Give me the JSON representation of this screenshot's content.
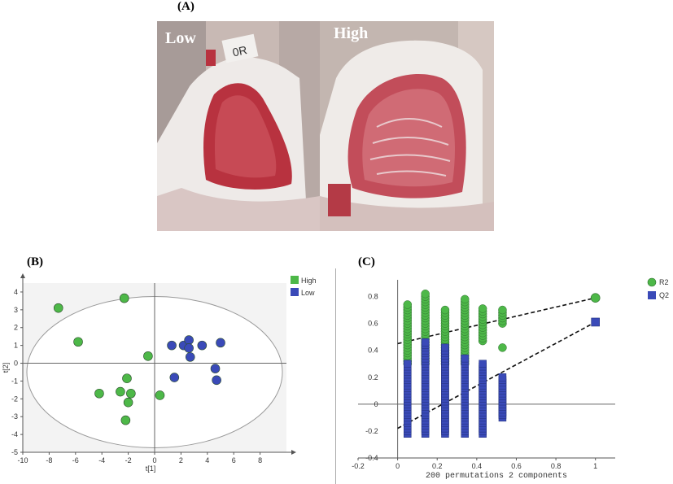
{
  "figure": {
    "panel_a_label": "(A)",
    "panel_b_label": "(B)",
    "panel_c_label": "(C)",
    "photo_low_caption": "Low",
    "photo_high_caption": "High",
    "tag_text": "0R"
  },
  "chart_data": [
    {
      "type": "scatter",
      "panel": "B",
      "xlabel": "t[1]",
      "ylabel": "t[2]",
      "xlim": [
        -10,
        10
      ],
      "ylim": [
        -5,
        4.5
      ],
      "xticks": [
        -10,
        -8,
        -6,
        -4,
        -2,
        0,
        2,
        4,
        6,
        8
      ],
      "yticks": [
        -5,
        -4,
        -3,
        -2,
        -1,
        0,
        1,
        2,
        3,
        4
      ],
      "legend_position": "top-right",
      "grid": false,
      "colors": {
        "High": "#4db848",
        "Low": "#3a4ab8"
      },
      "series": [
        {
          "name": "High",
          "points": [
            [
              -7.3,
              3.1
            ],
            [
              -2.3,
              3.65
            ],
            [
              -5.8,
              1.2
            ],
            [
              -0.5,
              0.4
            ],
            [
              -2.1,
              -0.85
            ],
            [
              -4.2,
              -1.7
            ],
            [
              -2.6,
              -1.6
            ],
            [
              -1.8,
              -1.7
            ],
            [
              -2.0,
              -2.2
            ],
            [
              0.4,
              -1.8
            ],
            [
              -2.2,
              -3.2
            ]
          ]
        },
        {
          "name": "Low",
          "points": [
            [
              1.3,
              1.0
            ],
            [
              2.2,
              1.0
            ],
            [
              2.6,
              1.3
            ],
            [
              2.6,
              0.85
            ],
            [
              3.6,
              1.0
            ],
            [
              5.0,
              1.15
            ],
            [
              2.7,
              0.35
            ],
            [
              1.5,
              -0.8
            ],
            [
              4.6,
              -0.3
            ],
            [
              4.7,
              -0.95
            ]
          ]
        }
      ]
    },
    {
      "type": "scatter",
      "panel": "C",
      "xlabel": "200 permutations 2 components",
      "xlim": [
        -0.2,
        1.1
      ],
      "ylim": [
        -0.4,
        0.9
      ],
      "xticks": [
        -0.2,
        0,
        0.2,
        0.4,
        0.6,
        0.8,
        1
      ],
      "yticks": [
        -0.4,
        -0.2,
        0,
        0.2,
        0.4,
        0.6,
        0.8
      ],
      "legend_position": "top-right",
      "grid": false,
      "colors": {
        "R2": "#4db848",
        "Q2": "#3a4ab8"
      },
      "columns_x": [
        0.05,
        0.14,
        0.24,
        0.34,
        0.43,
        0.53
      ],
      "series": [
        {
          "name": "R2",
          "marker": "circle",
          "columns": [
            {
              "x": 0.05,
              "ymin": 0.3,
              "ymax": 0.74
            },
            {
              "x": 0.14,
              "ymin": 0.3,
              "ymax": 0.82
            },
            {
              "x": 0.24,
              "ymin": 0.3,
              "ymax": 0.71
            },
            {
              "x": 0.34,
              "ymin": 0.3,
              "ymax": 0.78
            },
            {
              "x": 0.43,
              "ymin": 0.47,
              "ymax": 0.71
            },
            {
              "x": 0.53,
              "ymin": 0.6,
              "ymax": 0.71
            }
          ],
          "extra_points": [
            [
              0.53,
              0.42
            ]
          ],
          "original": [
            1,
            0.79
          ],
          "regression_line": {
            "x": [
              0,
              1
            ],
            "y": [
              0.45,
              0.79
            ]
          }
        },
        {
          "name": "Q2",
          "marker": "square",
          "columns": [
            {
              "x": 0.05,
              "ymin": -0.22,
              "ymax": 0.3
            },
            {
              "x": 0.14,
              "ymin": -0.22,
              "ymax": 0.46
            },
            {
              "x": 0.24,
              "ymin": -0.22,
              "ymax": 0.42
            },
            {
              "x": 0.34,
              "ymin": -0.22,
              "ymax": 0.35
            },
            {
              "x": 0.43,
              "ymin": -0.22,
              "ymax": 0.31
            },
            {
              "x": 0.53,
              "ymin": -0.1,
              "ymax": 0.2
            }
          ],
          "original": [
            1,
            0.61
          ],
          "regression_line": {
            "x": [
              0,
              1
            ],
            "y": [
              -0.18,
              0.61
            ]
          }
        }
      ]
    }
  ]
}
